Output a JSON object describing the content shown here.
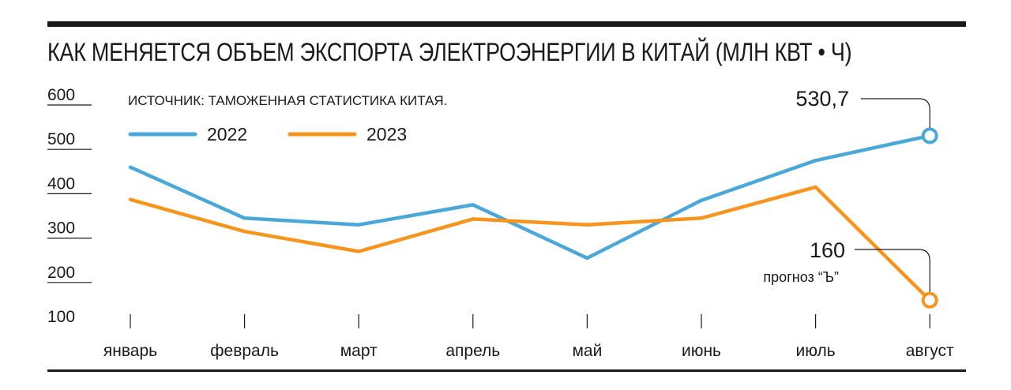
{
  "title": "КАК МЕНЯЕТСЯ ОБЪЕМ ЭКСПОРТА ЭЛЕКТРОЭНЕРГИИ В КИТАЙ (МЛН КВТ • Ч)",
  "source": "ИСТОЧНИК: ТАМОЖЕННАЯ СТАТИСТИКА КИТАЯ.",
  "colors": {
    "2022": "#4aa8d8",
    "2023": "#f7941d",
    "text": "#1a1a1a"
  },
  "chart_data": {
    "type": "line",
    "categories": [
      "январь",
      "февраль",
      "март",
      "апрель",
      "май",
      "июнь",
      "июль",
      "август"
    ],
    "yticks": [
      "600",
      "500",
      "400",
      "300",
      "200",
      "100"
    ],
    "ylim": [
      100,
      600
    ],
    "series": [
      {
        "name": "2022",
        "values": [
          460,
          345,
          330,
          375,
          255,
          385,
          475,
          530.7
        ]
      },
      {
        "name": "2023",
        "values": [
          387,
          315,
          270,
          343,
          330,
          345,
          415,
          160
        ]
      }
    ],
    "annotations": [
      {
        "series": "2022",
        "point": "август",
        "label": "530,7"
      },
      {
        "series": "2023",
        "point": "август",
        "label": "160",
        "note": "прогноз “Ъ”"
      }
    ],
    "grid": false,
    "legend": "top-left"
  }
}
